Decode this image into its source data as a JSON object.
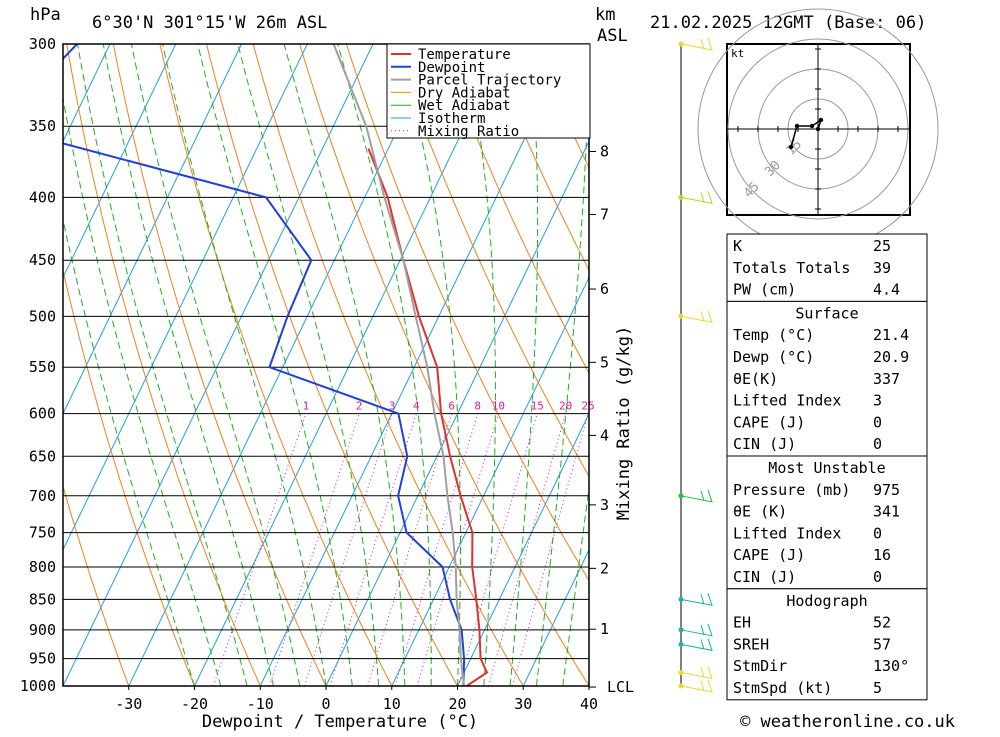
{
  "header": {
    "pressure_unit": "hPa",
    "location": "6°30'N  301°15'W  26m  ASL",
    "km_unit": "km",
    "asl": "ASL",
    "datetime": "21.02.2025  12GMT  (Base: 06)"
  },
  "footer": {
    "credit": "© weatheronline.co.uk"
  },
  "chart_data": [
    {
      "type": "line",
      "subtype": "skew-t log-p sounding",
      "xlabel": "Dewpoint / Temperature (°C)",
      "ylabel": "hPa",
      "y_axis": "logarithmic, inverted",
      "xlim": [
        -40,
        40
      ],
      "ylim": [
        1000,
        300
      ],
      "x_ticks": [
        -30,
        -20,
        -10,
        0,
        10,
        20,
        30,
        40
      ],
      "y_ticks": [
        300,
        350,
        400,
        450,
        500,
        550,
        600,
        650,
        700,
        750,
        800,
        850,
        900,
        950,
        1000
      ],
      "km_ticks": [
        {
          "label": "8",
          "p": 367
        },
        {
          "label": "7",
          "p": 413
        },
        {
          "label": "6",
          "p": 475
        },
        {
          "label": "5",
          "p": 545
        },
        {
          "label": "4",
          "p": 625
        },
        {
          "label": "3",
          "p": 712
        },
        {
          "label": "2",
          "p": 802
        },
        {
          "label": "1",
          "p": 899
        },
        {
          "label": "LCL",
          "p": 1002
        }
      ],
      "mixing_ratio_label": "Mixing Ratio (g/kg)",
      "mixing_ratio_values": [
        "1",
        "2",
        "3",
        "4",
        "6",
        "8",
        "10",
        "15",
        "20",
        "25"
      ],
      "legend": [
        "Temperature",
        "Dewpoint",
        "Parcel Trajectory",
        "Dry Adiabat",
        "Wet Adiabat",
        "Isotherm",
        "Mixing Ratio"
      ],
      "legend_position": "top-right",
      "colors": {
        "temperature": "#e03030",
        "dewpoint": "#2040d8",
        "parcel": "#a0a0a0",
        "dry_adiabat": "#f08020",
        "wet_adiabat": "#20b020",
        "isotherm": "#20a0e0",
        "mixing_ratio": "#d020a0"
      },
      "series": [
        {
          "name": "Temperature",
          "points": [
            {
              "p": 1000,
              "t": 21.4
            },
            {
              "p": 975,
              "t": 23.5
            },
            {
              "p": 950,
              "t": 21.5
            },
            {
              "p": 900,
              "t": 19.2
            },
            {
              "p": 850,
              "t": 16.5
            },
            {
              "p": 800,
              "t": 13.5
            },
            {
              "p": 750,
              "t": 11.0
            },
            {
              "p": 700,
              "t": 6.5
            },
            {
              "p": 650,
              "t": 2.0
            },
            {
              "p": 600,
              "t": -2.5
            },
            {
              "p": 550,
              "t": -6.5
            },
            {
              "p": 500,
              "t": -13.0
            },
            {
              "p": 450,
              "t": -19.5
            },
            {
              "p": 400,
              "t": -26.5
            },
            {
              "p": 365,
              "t": -33.0
            }
          ]
        },
        {
          "name": "Dewpoint",
          "points": [
            {
              "p": 1000,
              "t": 20.9
            },
            {
              "p": 950,
              "t": 19.0
            },
            {
              "p": 900,
              "t": 16.5
            },
            {
              "p": 850,
              "t": 12.5
            },
            {
              "p": 800,
              "t": 9.0
            },
            {
              "p": 750,
              "t": 1.0
            },
            {
              "p": 700,
              "t": -3.0
            },
            {
              "p": 650,
              "t": -4.5
            },
            {
              "p": 600,
              "t": -9.0
            },
            {
              "p": 550,
              "t": -32.0
            },
            {
              "p": 500,
              "t": -33.0
            },
            {
              "p": 450,
              "t": -33.5
            },
            {
              "p": 400,
              "t": -45.0
            },
            {
              "p": 350,
              "t": -91.0
            },
            {
              "p": 300,
              "t": -85.0
            }
          ]
        },
        {
          "name": "Parcel Trajectory",
          "points": [
            {
              "p": 1000,
              "t": 21.0
            },
            {
              "p": 950,
              "t": 18.5
            },
            {
              "p": 900,
              "t": 16.2
            },
            {
              "p": 850,
              "t": 13.5
            },
            {
              "p": 800,
              "t": 11.0
            },
            {
              "p": 750,
              "t": 8.0
            },
            {
              "p": 700,
              "t": 4.5
            },
            {
              "p": 650,
              "t": 1.0
            },
            {
              "p": 600,
              "t": -3.5
            },
            {
              "p": 550,
              "t": -8.0
            },
            {
              "p": 500,
              "t": -13.5
            },
            {
              "p": 450,
              "t": -19.5
            },
            {
              "p": 400,
              "t": -27.0
            },
            {
              "p": 350,
              "t": -35.0
            },
            {
              "p": 300,
              "t": -46.0
            }
          ]
        }
      ],
      "wind_barbs": [
        {
          "p": 300,
          "color": "#e8d830"
        },
        {
          "p": 400,
          "color": "#a0e020"
        },
        {
          "p": 500,
          "color": "#e8d830"
        },
        {
          "p": 700,
          "color": "#20c040"
        },
        {
          "p": 850,
          "color": "#20b0a0"
        },
        {
          "p": 900,
          "color": "#20b0a0"
        },
        {
          "p": 925,
          "color": "#20b0a0"
        },
        {
          "p": 975,
          "color": "#e8d830"
        },
        {
          "p": 1000,
          "color": "#e8d830"
        }
      ]
    },
    {
      "type": "scatter",
      "subtype": "hodograph",
      "unit_label": "kt",
      "ring_labels": [
        "15",
        "30",
        "45"
      ],
      "points": [
        {
          "u": 0,
          "v": 0
        },
        {
          "u": 1,
          "v": 3
        },
        {
          "u": -2,
          "v": 1
        },
        {
          "u": -7,
          "v": 1
        },
        {
          "u": -9,
          "v": -6
        }
      ]
    }
  ],
  "indices": {
    "top": [
      {
        "label": "K",
        "value": "25"
      },
      {
        "label": "Totals Totals",
        "value": "39"
      },
      {
        "label": "PW (cm)",
        "value": "4.4"
      }
    ],
    "surface": {
      "title": "Surface",
      "rows": [
        {
          "label": "Temp (°C)",
          "value": "21.4"
        },
        {
          "label": "Dewp (°C)",
          "value": "20.9"
        },
        {
          "label": "θE(K)",
          "value": "337"
        },
        {
          "label": "Lifted Index",
          "value": "3"
        },
        {
          "label": "CAPE (J)",
          "value": "0"
        },
        {
          "label": "CIN (J)",
          "value": "0"
        }
      ]
    },
    "most_unstable": {
      "title": "Most Unstable",
      "rows": [
        {
          "label": "Pressure (mb)",
          "value": "975"
        },
        {
          "label": "θE (K)",
          "value": "341"
        },
        {
          "label": "Lifted Index",
          "value": "0"
        },
        {
          "label": "CAPE (J)",
          "value": "16"
        },
        {
          "label": "CIN (J)",
          "value": "0"
        }
      ]
    },
    "hodograph": {
      "title": "Hodograph",
      "rows": [
        {
          "label": "EH",
          "value": "52"
        },
        {
          "label": "SREH",
          "value": "57"
        },
        {
          "label": "StmDir",
          "value": "130°"
        },
        {
          "label": "StmSpd (kt)",
          "value": "5"
        }
      ]
    }
  }
}
